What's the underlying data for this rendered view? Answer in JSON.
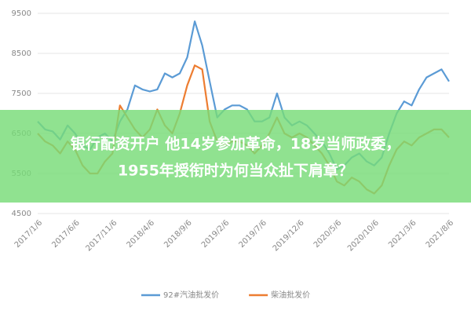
{
  "chart_data": {
    "type": "line",
    "categories": [
      "2017/1/6",
      null,
      null,
      null,
      null,
      "2017/6/6",
      null,
      null,
      null,
      null,
      "2017/11/6",
      null,
      null,
      null,
      null,
      "2018/4/6",
      null,
      null,
      null,
      null,
      "2018/9/6",
      null,
      null,
      null,
      null,
      "2019/2/6",
      null,
      null,
      null,
      null,
      "2019/7/6",
      null,
      null,
      null,
      null,
      "2019/12/6",
      null,
      null,
      null,
      null,
      "2020/5/6",
      null,
      null,
      null,
      null,
      "2020/10/6",
      null,
      null,
      null,
      null,
      "2021/3/6",
      null,
      null,
      null,
      null,
      "2021/8/6"
    ],
    "series": [
      {
        "name": "92#汽油批发价",
        "color": "#5b9bd5",
        "values": [
          6800,
          6600,
          6550,
          6350,
          6700,
          6500,
          6200,
          6100,
          6400,
          6500,
          6300,
          6800,
          7100,
          7700,
          7600,
          7550,
          7600,
          8000,
          7900,
          8000,
          8400,
          9300,
          8700,
          7800,
          6900,
          7100,
          7200,
          7200,
          7100,
          6800,
          6800,
          6900,
          7500,
          6900,
          6700,
          6800,
          6700,
          6500,
          6300,
          6000,
          5600,
          5700,
          5900,
          6000,
          5800,
          5700,
          5900,
          6500,
          7000,
          7300,
          7200,
          7600,
          7900,
          8000,
          8100,
          7800
        ]
      },
      {
        "name": "柴油批发价",
        "color": "#ed7d31",
        "values": [
          6500,
          6300,
          6200,
          6000,
          6300,
          6100,
          5700,
          5500,
          5500,
          5800,
          6000,
          7200,
          6900,
          6600,
          6400,
          6600,
          7100,
          6700,
          6500,
          7000,
          7700,
          8200,
          8100,
          6800,
          6300,
          6200,
          6300,
          6300,
          6200,
          6000,
          6200,
          6500,
          6900,
          6500,
          6400,
          6500,
          6400,
          6200,
          6000,
          5700,
          5300,
          5200,
          5400,
          5300,
          5100,
          5000,
          5200,
          5700,
          6100,
          6300,
          6200,
          6400,
          6500,
          6600,
          6600,
          6400
        ]
      }
    ],
    "ylim": [
      4500,
      9500
    ],
    "yticks": [
      4500,
      5500,
      6500,
      7500,
      8500,
      9500
    ],
    "grid": true
  },
  "headline": [
    "银行配资开户 他14岁参加革命，18岁当师政委，",
    "1955年授衔时为何当众扯下肩章？"
  ]
}
